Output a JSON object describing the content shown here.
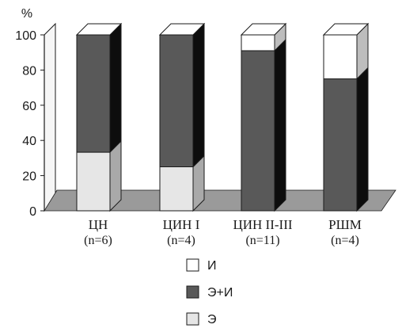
{
  "chart_data": {
    "type": "bar",
    "stacked": true,
    "three_d": true,
    "ylabel": "%",
    "ylim": [
      0,
      100
    ],
    "yticks": [
      0,
      20,
      40,
      60,
      80,
      100
    ],
    "categories": [
      "ЦН",
      "ЦИН I",
      "ЦИН II-III",
      "РШМ"
    ],
    "category_counts": [
      "(n=6)",
      "(n=4)",
      "(n=11)",
      "(n=4)"
    ],
    "series": [
      {
        "name": "Э",
        "values": [
          33.3,
          25,
          0,
          0
        ],
        "color": "#e6e6e6"
      },
      {
        "name": "Э+И",
        "values": [
          66.7,
          75,
          91,
          75
        ],
        "color": "#595959"
      },
      {
        "name": "И",
        "values": [
          0,
          0,
          9,
          25
        ],
        "color": "#ffffff"
      }
    ],
    "legend_order": [
      "И",
      "Э+И",
      "Э"
    ],
    "legend_position": "bottom-center"
  }
}
